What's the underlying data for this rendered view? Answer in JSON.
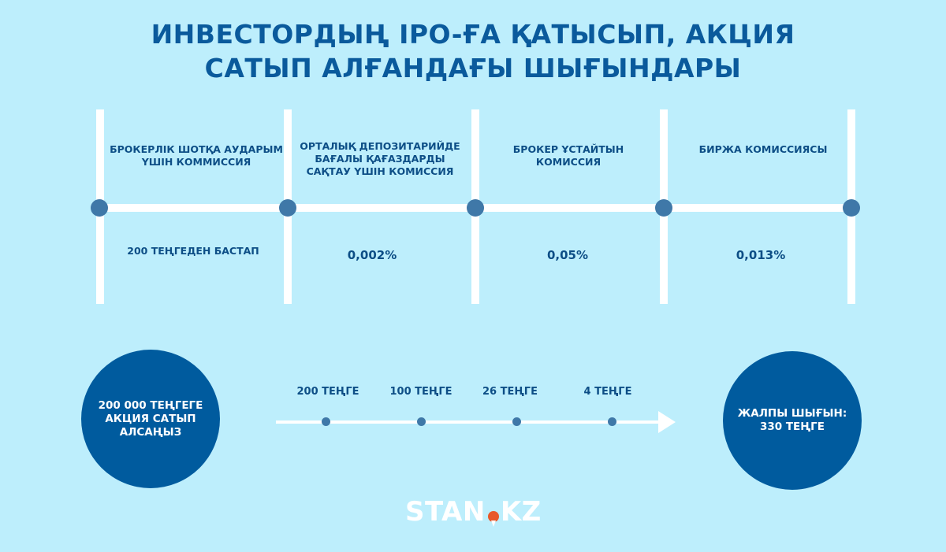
{
  "title": {
    "line1": "ИНВЕСТОРДЫҢ IPO-ҒА ҚАТЫСЫП, АКЦИЯ",
    "line2": "САТЫП АЛҒАНДАҒЫ ШЫҒЫНДАРЫ"
  },
  "commissions": [
    {
      "label": "БРОКЕРЛІК ШОТҚА АУДАРЫМ ҮШІН КОММИССИЯ",
      "value": "200 ТЕҢГЕДЕН БАСТАП"
    },
    {
      "label": "ОРТАЛЫҚ ДЕПОЗИТАРИЙДЕ БАҒАЛЫ ҚАҒАЗДАРДЫ САҚТАУ ҮШІН КОМИССИЯ",
      "value": "0,002%"
    },
    {
      "label": "БРОКЕР ҰСТАЙТЫН КОМИССИЯ",
      "value": "0,05%"
    },
    {
      "label": "БИРЖА КОМИССИЯСЫ",
      "value": "0,013%"
    }
  ],
  "flow": {
    "start": "200 000 ТЕҢГЕГЕ АКЦИЯ САТЫП АЛСАҢЫЗ",
    "amounts": [
      "200 ТЕҢГЕ",
      "100 ТЕҢГЕ",
      "26 ТЕҢГЕ",
      "4 ТЕҢГЕ"
    ],
    "total": "ЖАЛПЫ ШЫҒЫН: 330 ТЕҢГЕ"
  },
  "logo": {
    "left": "STAN",
    "right": "KZ"
  },
  "colors": {
    "background": "#bdeefc",
    "primary": "#005b9e",
    "node": "#3f78a8",
    "logo_accent": "#e8582a"
  }
}
